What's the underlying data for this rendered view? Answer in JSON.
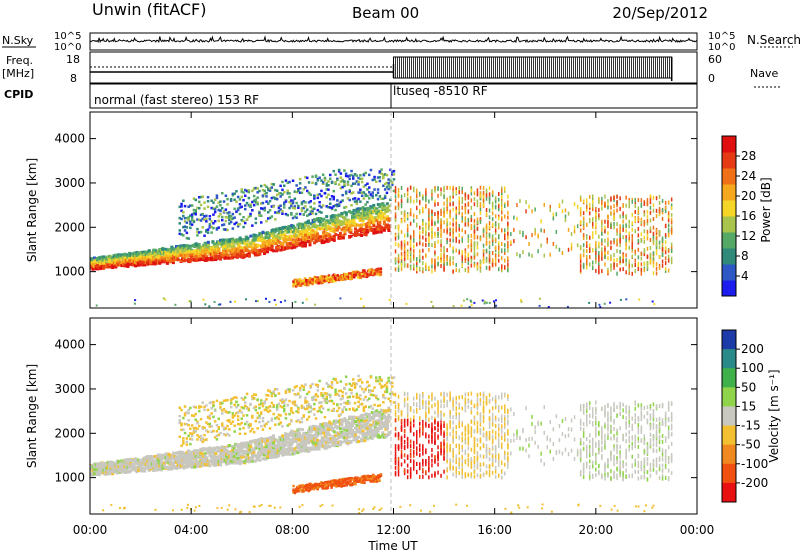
{
  "header": {
    "station": "Unwin (fitACF)",
    "beam": "Beam 00",
    "date": "20/Sep/2012"
  },
  "side_labels": {
    "nsky": "N.Sky",
    "nsearch": "N.Search",
    "freq_line1": "Freq.",
    "freq_line2": "[MHz]",
    "nave": "Nave",
    "cpid": "CPID"
  },
  "strip_ticks": {
    "noise_left": [
      "10^5",
      "10^0"
    ],
    "noise_right": [
      "10^5",
      "10^0"
    ],
    "freq_left": [
      "18",
      "8"
    ],
    "nave_right": [
      "60",
      "0"
    ]
  },
  "cpid_segments": [
    {
      "label": "normal (fast stereo) 153 RF",
      "start_hour": 0,
      "end_hour": 12
    },
    {
      "label": "ltuseq -8510 RF",
      "start_hour": 12,
      "end_hour": 23
    }
  ],
  "chart_data": [
    {
      "type": "heatmap",
      "name": "power",
      "x_ticks": [
        "00:00",
        "04:00",
        "08:00",
        "12:00",
        "16:00",
        "20:00",
        "00:00"
      ],
      "xlim_hours": [
        0,
        24
      ],
      "ylabel": "Slant Range [km]",
      "ylim_km": [
        180,
        4600
      ],
      "y_ticks": [
        1000,
        2000,
        3000,
        4000
      ],
      "colorbar": {
        "label": "Power [dB]",
        "ticks": [
          "4",
          "8",
          "12",
          "16",
          "20",
          "24",
          "28"
        ],
        "colors": [
          "#1c1cee",
          "#2d57c4",
          "#2f8a7a",
          "#55a866",
          "#a8c44c",
          "#f5d526",
          "#f5a81e",
          "#f07018",
          "#e63a14",
          "#e01010"
        ]
      }
    },
    {
      "type": "heatmap",
      "name": "velocity",
      "x_ticks": [
        "00:00",
        "04:00",
        "08:00",
        "12:00",
        "16:00",
        "20:00",
        "00:00"
      ],
      "xlim_hours": [
        0,
        24
      ],
      "xlabel": "Time UT",
      "ylabel": "Slant Range [km]",
      "ylim_km": [
        180,
        4600
      ],
      "y_ticks": [
        1000,
        2000,
        3000,
        4000
      ],
      "colorbar": {
        "label": "Velocity [m s⁻¹]",
        "ticks": [
          "200",
          "100",
          "50",
          "15",
          "-15",
          "-50",
          "-100",
          "-200"
        ],
        "colors": [
          "#1c3aa8",
          "#2a8a8a",
          "#3fb04a",
          "#8fd44a",
          "#c8c8c0",
          "#f2c030",
          "#f08a20",
          "#f05010",
          "#e81010"
        ]
      }
    }
  ]
}
